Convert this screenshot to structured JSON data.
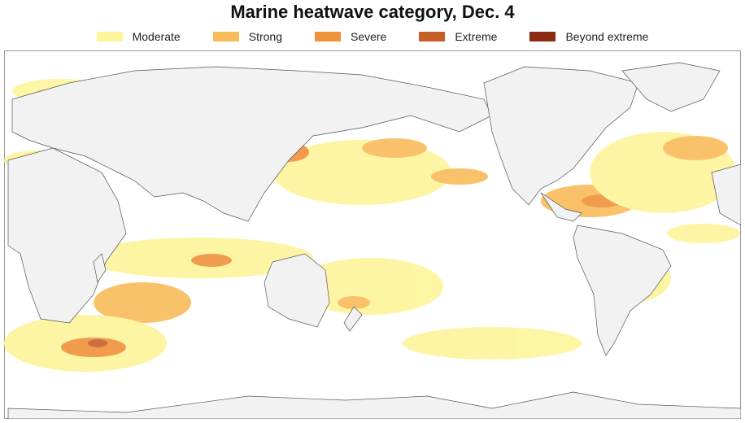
{
  "title": "Marine heatwave category, Dec. 4",
  "legend": {
    "items": [
      {
        "label": "Moderate",
        "color": "#fdf59a"
      },
      {
        "label": "Strong",
        "color": "#f9bc5a"
      },
      {
        "label": "Severe",
        "color": "#f0923a"
      },
      {
        "label": "Extreme",
        "color": "#c85f28"
      },
      {
        "label": "Beyond extreme",
        "color": "#8c2a14"
      }
    ]
  }
}
